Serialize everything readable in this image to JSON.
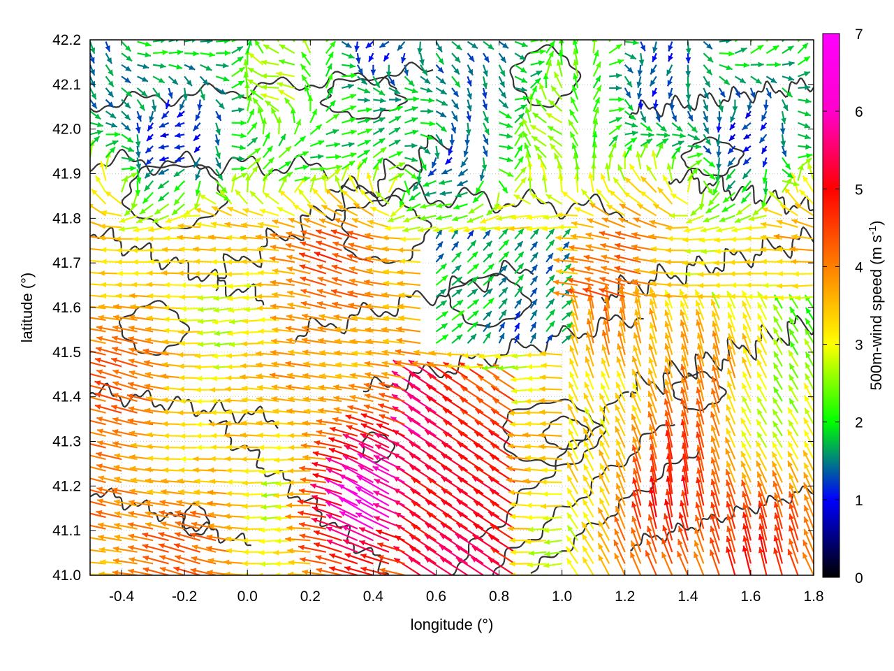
{
  "chart_data": {
    "type": "vector-field",
    "xlabel": "longitude (°)",
    "ylabel": "latitude (°)",
    "xlim": [
      -0.5,
      1.8
    ],
    "ylim": [
      41.0,
      42.2
    ],
    "x_ticks": [
      "-0.4",
      "-0.2",
      "0.0",
      "0.2",
      "0.4",
      "0.6",
      "0.8",
      "1.0",
      "1.2",
      "1.4",
      "1.6",
      "1.8"
    ],
    "y_ticks": [
      "41.0",
      "41.1",
      "41.2",
      "41.3",
      "41.4",
      "41.5",
      "41.6",
      "41.7",
      "41.8",
      "41.9",
      "42.0",
      "42.1",
      "42.2"
    ],
    "grid": true,
    "colorbar": {
      "label_main": "500m-wind speed (m s",
      "label_sup": "-1",
      "label_end": ")",
      "min": 0,
      "max": 7,
      "ticks": [
        "0",
        "1",
        "2",
        "3",
        "4",
        "5",
        "6",
        "7"
      ],
      "colors": [
        "#000000",
        "#0000ff",
        "#00ff00",
        "#ffff00",
        "#ff8000",
        "#ff0000",
        "#ff00ff"
      ]
    },
    "contour_color": "#333333",
    "wind_field_regions": [
      {
        "region": "west (lon -0.5 to 0.0)",
        "direction": "from east (westward)",
        "speed_range": [
          3,
          5
        ]
      },
      {
        "region": "south-central jet (lon 0.2 to 0.7, lat 41.0 to 41.4)",
        "direction": "from south-east (north-westward)",
        "speed_range": [
          5.5,
          7
        ]
      },
      {
        "region": "north (lat 41.8 to 42.2)",
        "direction": "variable, mostly north-eastward",
        "speed_range": [
          0.5,
          3
        ]
      },
      {
        "region": "east (lon 1.0 to 1.8, lat 41.0 to 41.5)",
        "direction": "from south (northward)",
        "speed_range": [
          2.5,
          5
        ]
      }
    ]
  }
}
